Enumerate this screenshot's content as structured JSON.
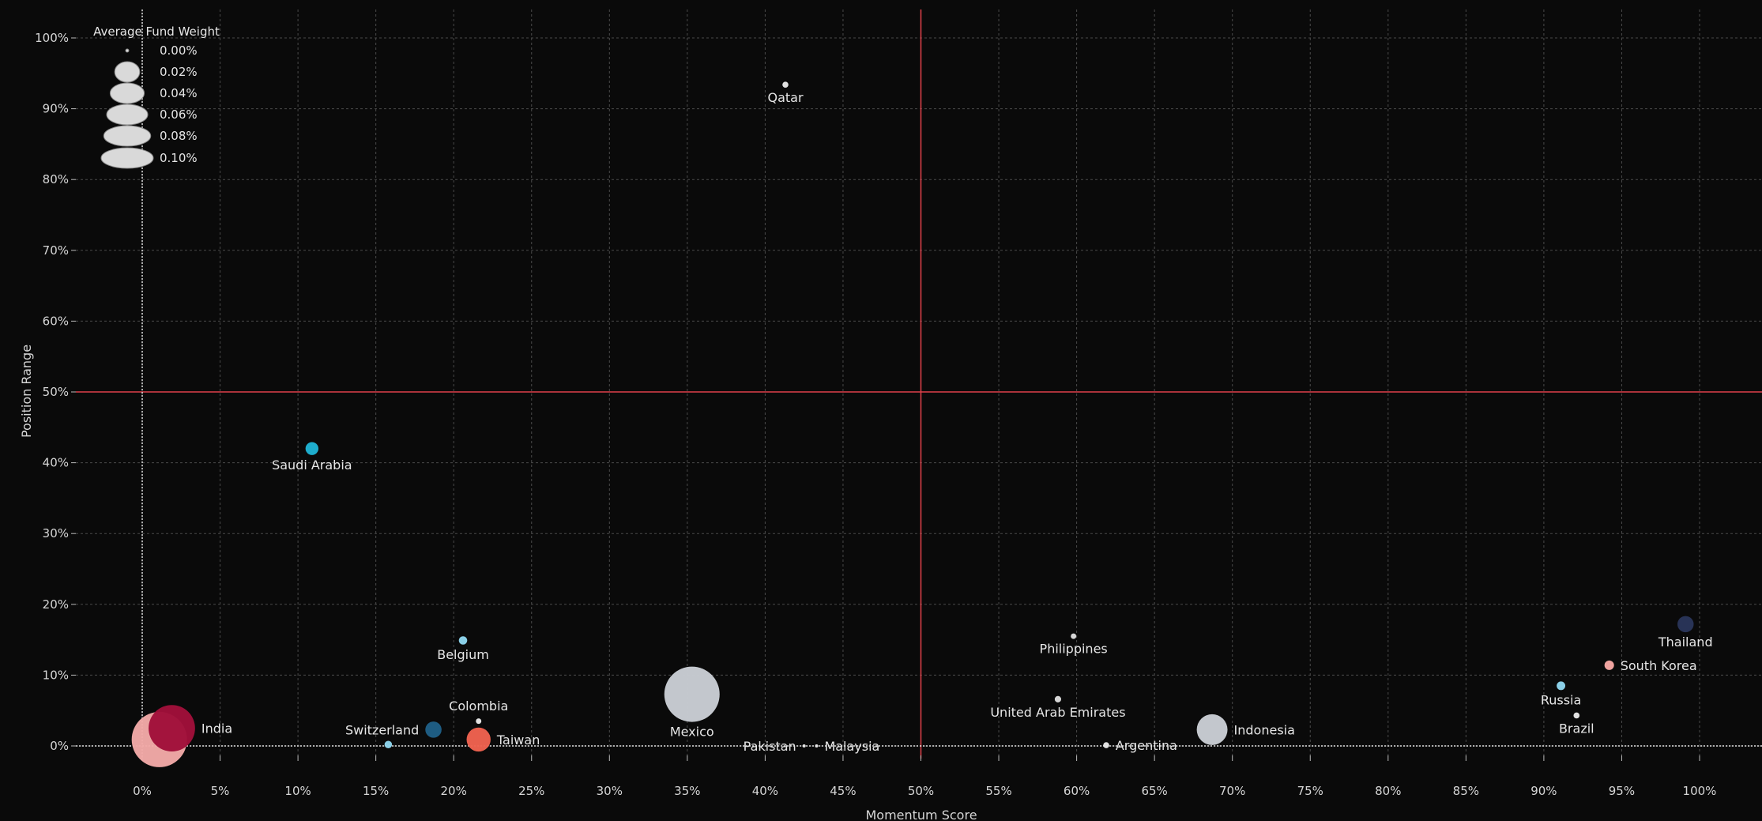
{
  "chart_data": {
    "type": "scatter",
    "xlabel": "Momentum Score",
    "ylabel": "Position Range",
    "xlim": [
      -0.04,
      1.04
    ],
    "ylim": [
      -0.015,
      1.04
    ],
    "x_ticks": [
      0,
      0.05,
      0.1,
      0.15,
      0.2,
      0.25,
      0.3,
      0.35,
      0.4,
      0.45,
      0.5,
      0.55,
      0.6,
      0.65,
      0.7,
      0.75,
      0.8,
      0.85,
      0.9,
      0.95,
      1.0
    ],
    "x_tick_labels": [
      "0%",
      "5%",
      "10%",
      "15%",
      "20%",
      "25%",
      "30%",
      "35%",
      "40%",
      "45%",
      "50%",
      "55%",
      "60%",
      "65%",
      "70%",
      "75%",
      "80%",
      "85%",
      "90%",
      "95%",
      "100%"
    ],
    "y_ticks": [
      0,
      0.1,
      0.2,
      0.3,
      0.4,
      0.5,
      0.6,
      0.7,
      0.8,
      0.9,
      1.0
    ],
    "y_tick_labels": [
      "0%",
      "10%",
      "20%",
      "30%",
      "40%",
      "50%",
      "60%",
      "70%",
      "80%",
      "90%",
      "100%"
    ],
    "reference_lines": {
      "x": 0.5,
      "y": 0.5,
      "color": "#e0404a"
    },
    "grid": true,
    "legend": {
      "title": "Average Fund Weight",
      "placement": "top-left",
      "entries": [
        "0.00%",
        "0.02%",
        "0.04%",
        "0.06%",
        "0.08%",
        "0.10%"
      ],
      "values": [
        0.0,
        0.02,
        0.04,
        0.06,
        0.08,
        0.1
      ]
    },
    "points": [
      {
        "label": "Qatar",
        "x": 0.413,
        "y": 0.934,
        "weight": 0.0003,
        "color": "#e8e8e8",
        "label_pos": "below"
      },
      {
        "label": "Saudi Arabia",
        "x": 0.109,
        "y": 0.42,
        "weight": 0.0035,
        "color": "#1fb3d4",
        "label_pos": "below"
      },
      {
        "label": "Belgium",
        "x": 0.206,
        "y": 0.149,
        "weight": 0.001,
        "color": "#8ed6ee",
        "label_pos": "below"
      },
      {
        "label": "Philippines",
        "x": 0.598,
        "y": 0.155,
        "weight": 0.0002,
        "color": "#dddddd",
        "label_pos": "below"
      },
      {
        "label": "Thailand",
        "x": 0.991,
        "y": 0.172,
        "weight": 0.0063,
        "color": "#293559",
        "label_pos": "below"
      },
      {
        "label": "South Korea",
        "x": 0.942,
        "y": 0.114,
        "weight": 0.0015,
        "color": "#f7a8a4",
        "label_pos": "right"
      },
      {
        "label": "Russia",
        "x": 0.911,
        "y": 0.085,
        "weight": 0.0011,
        "color": "#8ed6ee",
        "label_pos": "below"
      },
      {
        "label": "Brazil",
        "x": 0.921,
        "y": 0.043,
        "weight": 0.0003,
        "color": "#e8e8e8",
        "label_pos": "below"
      },
      {
        "label": "United Arab Emirates",
        "x": 0.588,
        "y": 0.066,
        "weight": 0.0004,
        "color": "#dddddd",
        "label_pos": "below"
      },
      {
        "label": "Colombia",
        "x": 0.216,
        "y": 0.035,
        "weight": 0.0002,
        "color": "#e8e8e8",
        "label_pos": "above"
      },
      {
        "label": "Mexico",
        "x": 0.353,
        "y": 0.073,
        "weight": 0.1,
        "color": "#c9cdd4",
        "label_pos": "below"
      },
      {
        "label": "Indonesia",
        "x": 0.687,
        "y": 0.023,
        "weight": 0.028,
        "color": "#c9cdd4",
        "label_pos": "right"
      },
      {
        "label": "India",
        "x": 0.019,
        "y": 0.025,
        "weight": 0.069,
        "color": "#a0103a",
        "label_pos": "right"
      },
      {
        "label": "",
        "x": 0.011,
        "y": 0.009,
        "weight": 0.1,
        "color": "#f2a9a7",
        "label_pos": "none"
      },
      {
        "label": "Switzerland",
        "x": 0.187,
        "y": 0.023,
        "weight": 0.0063,
        "color": "#1f5f86",
        "label_pos": "left"
      },
      {
        "label": "Taiwan",
        "x": 0.216,
        "y": 0.009,
        "weight": 0.016,
        "color": "#f06250",
        "label_pos": "right"
      },
      {
        "label": "",
        "x": 0.158,
        "y": 0.002,
        "weight": 0.0007,
        "color": "#8ed6ee",
        "label_pos": "none"
      },
      {
        "label": "Pakistan",
        "x": 0.425,
        "y": 0.0,
        "weight": 0.0,
        "color": "#e8e8e8",
        "label_pos": "left"
      },
      {
        "label": "Malaysia",
        "x": 0.433,
        "y": 0.0,
        "weight": 0.0,
        "color": "#e8e8e8",
        "label_pos": "right"
      },
      {
        "label": "Argentina",
        "x": 0.619,
        "y": 0.001,
        "weight": 0.0003,
        "color": "#e8e8e8",
        "label_pos": "right"
      }
    ]
  }
}
